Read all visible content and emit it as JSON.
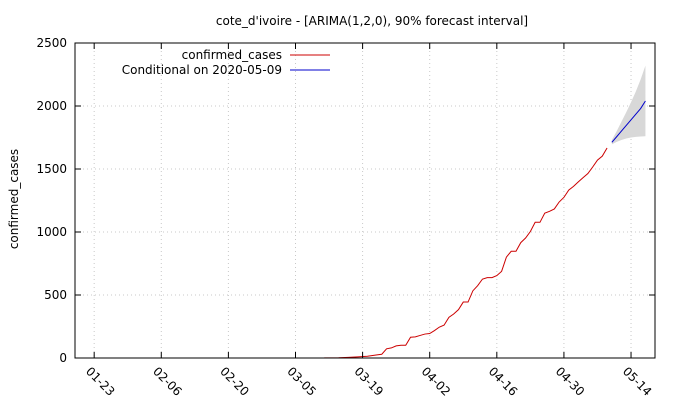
{
  "chart_data": {
    "type": "line",
    "title": "cote_d'ivoire -  [ARIMA(1,2,0), 90% forecast interval]",
    "xlabel": "",
    "ylabel": "confirmed_cases",
    "x_tick_labels": [
      "01-23",
      "02-06",
      "02-20",
      "03-05",
      "03-19",
      "04-02",
      "04-16",
      "04-30",
      "05-14"
    ],
    "x_tick_dates": [
      "2020-01-23",
      "2020-02-06",
      "2020-02-20",
      "2020-03-05",
      "2020-03-19",
      "2020-04-02",
      "2020-04-16",
      "2020-04-30",
      "2020-05-14"
    ],
    "xlim": [
      "2020-01-19",
      "2020-05-19"
    ],
    "ylim": [
      0,
      2500
    ],
    "y_ticks": [
      0,
      500,
      1000,
      1500,
      2000,
      2500
    ],
    "grid": true,
    "legend_position": "top-left",
    "series": [
      {
        "name": "confirmed_cases",
        "color": "#cc0000",
        "points": [
          [
            "2020-03-11",
            1
          ],
          [
            "2020-03-14",
            2
          ],
          [
            "2020-03-16",
            5
          ],
          [
            "2020-03-18",
            9
          ],
          [
            "2020-03-20",
            14
          ],
          [
            "2020-03-22",
            25
          ],
          [
            "2020-03-23",
            30
          ],
          [
            "2020-03-24",
            73
          ],
          [
            "2020-03-25",
            80
          ],
          [
            "2020-03-26",
            96
          ],
          [
            "2020-03-27",
            101
          ],
          [
            "2020-03-28",
            101
          ],
          [
            "2020-03-29",
            165
          ],
          [
            "2020-03-30",
            168
          ],
          [
            "2020-03-31",
            179
          ],
          [
            "2020-04-01",
            190
          ],
          [
            "2020-04-02",
            194
          ],
          [
            "2020-04-03",
            218
          ],
          [
            "2020-04-04",
            245
          ],
          [
            "2020-04-05",
            261
          ],
          [
            "2020-04-06",
            323
          ],
          [
            "2020-04-07",
            349
          ],
          [
            "2020-04-08",
            384
          ],
          [
            "2020-04-09",
            444
          ],
          [
            "2020-04-10",
            444
          ],
          [
            "2020-04-11",
            533
          ],
          [
            "2020-04-12",
            574
          ],
          [
            "2020-04-13",
            626
          ],
          [
            "2020-04-14",
            638
          ],
          [
            "2020-04-15",
            638
          ],
          [
            "2020-04-16",
            654
          ],
          [
            "2020-04-17",
            688
          ],
          [
            "2020-04-18",
            801
          ],
          [
            "2020-04-19",
            847
          ],
          [
            "2020-04-20",
            847
          ],
          [
            "2020-04-21",
            916
          ],
          [
            "2020-04-22",
            952
          ],
          [
            "2020-04-23",
            1004
          ],
          [
            "2020-04-24",
            1077
          ],
          [
            "2020-04-25",
            1077
          ],
          [
            "2020-04-26",
            1150
          ],
          [
            "2020-04-27",
            1164
          ],
          [
            "2020-04-28",
            1183
          ],
          [
            "2020-04-29",
            1238
          ],
          [
            "2020-04-30",
            1275
          ],
          [
            "2020-05-01",
            1333
          ],
          [
            "2020-05-02",
            1362
          ],
          [
            "2020-05-03",
            1398
          ],
          [
            "2020-05-04",
            1432
          ],
          [
            "2020-05-05",
            1464
          ],
          [
            "2020-05-06",
            1516
          ],
          [
            "2020-05-07",
            1571
          ],
          [
            "2020-05-08",
            1602
          ],
          [
            "2020-05-09",
            1667
          ]
        ]
      },
      {
        "name": "Conditional on 2020-05-09",
        "color": "#0000cc",
        "points": [
          [
            "2020-05-10",
            1712
          ],
          [
            "2020-05-11",
            1756
          ],
          [
            "2020-05-12",
            1801
          ],
          [
            "2020-05-13",
            1846
          ],
          [
            "2020-05-14",
            1890
          ],
          [
            "2020-05-15",
            1935
          ],
          [
            "2020-05-16",
            1980
          ],
          [
            "2020-05-17",
            2040
          ]
        ],
        "interval_lower": [
          1695,
          1715,
          1730,
          1742,
          1750,
          1755,
          1758,
          1760
        ],
        "interval_upper": [
          1730,
          1800,
          1875,
          1950,
          2030,
          2115,
          2210,
          2320
        ],
        "interval_color": "#d8d8d8"
      }
    ]
  }
}
